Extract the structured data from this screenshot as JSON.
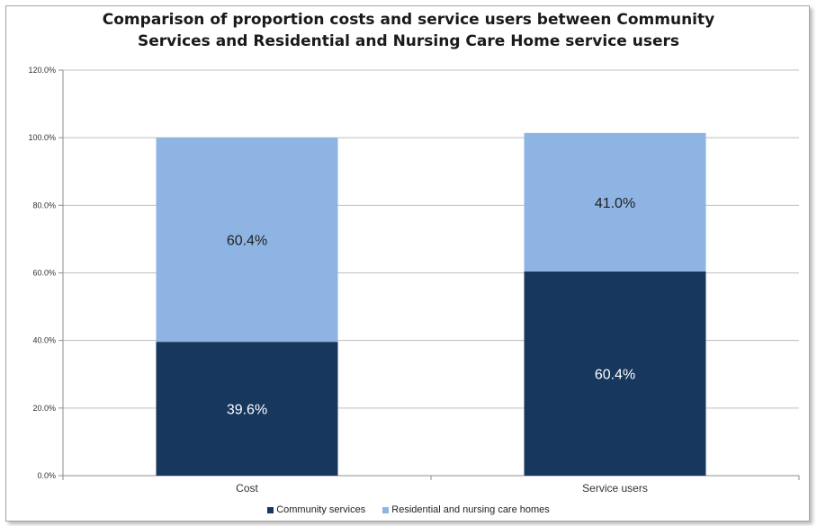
{
  "chart_data": {
    "type": "bar",
    "stacked": true,
    "title_lines": [
      "Comparison of proportion costs and service users between Community",
      "Services and Residential and Nursing Care Home service users"
    ],
    "categories": [
      "Cost",
      "Service users"
    ],
    "series": [
      {
        "name": "Community services",
        "values": [
          39.6,
          60.4
        ],
        "labels": [
          "39.6%",
          "60.4%"
        ],
        "color": "#17375e",
        "label_color": "#ffffff"
      },
      {
        "name": "Residential and nursing care homes",
        "values": [
          60.4,
          41.0
        ],
        "labels": [
          "60.4%",
          "41.0%"
        ],
        "color": "#8db4e2",
        "label_color": "#222222"
      }
    ],
    "y_ticks": [
      "0.0%",
      "20.0%",
      "40.0%",
      "60.0%",
      "80.0%",
      "100.0%",
      "120.0%"
    ],
    "ylim": [
      0,
      120
    ],
    "grid": true,
    "legend_position": "bottom"
  }
}
